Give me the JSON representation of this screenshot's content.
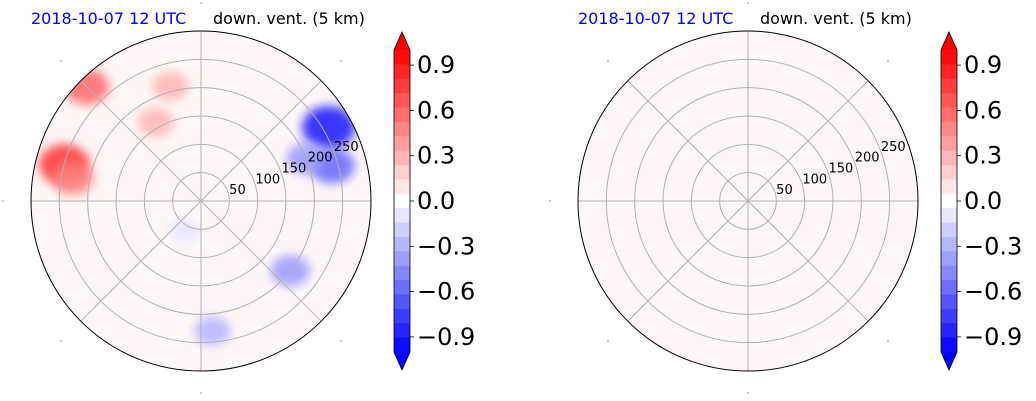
{
  "chart_data": [
    {
      "type": "polar-contourf",
      "title_left": "2018-10-07 12 UTC",
      "title_right": "down. vent. (5 km)",
      "radial_ticks": [
        50,
        100,
        150,
        200,
        250
      ],
      "radial_max": 300,
      "theta_gridlines_deg": [
        0,
        45,
        90,
        135,
        180,
        225,
        270,
        315
      ],
      "grid": true,
      "colormap": "bwr",
      "colorbar": {
        "ticks": [
          "0.9",
          "0.6",
          "0.3",
          "0.0",
          "−0.3",
          "−0.6",
          "−0.9"
        ],
        "tick_values": [
          0.9,
          0.6,
          0.3,
          0.0,
          -0.3,
          -0.6,
          -0.9
        ],
        "vmin": -1.0,
        "vmax": 1.0,
        "levels": 21,
        "extend": "both"
      },
      "base_value": 0.03,
      "features": [
        {
          "r": 285,
          "theta_deg": 135,
          "value": 0.6
        },
        {
          "r": 250,
          "theta_deg": 165,
          "value": 0.8
        },
        {
          "r": 230,
          "theta_deg": 170,
          "value": 0.5
        },
        {
          "r": 160,
          "theta_deg": 120,
          "value": 0.3
        },
        {
          "r": 210,
          "theta_deg": 105,
          "value": 0.3
        },
        {
          "r": 260,
          "theta_deg": 30,
          "value": -0.9
        },
        {
          "r": 240,
          "theta_deg": 15,
          "value": -0.6
        },
        {
          "r": 200,
          "theta_deg": 22,
          "value": -0.4
        },
        {
          "r": 200,
          "theta_deg": -38,
          "value": -0.4
        },
        {
          "r": 230,
          "theta_deg": -85,
          "value": -0.3
        },
        {
          "r": 60,
          "theta_deg": -120,
          "value": -0.1
        }
      ]
    },
    {
      "type": "polar-contourf",
      "title_left": "2018-10-07 12 UTC",
      "title_right": "down. vent. (5 km)",
      "radial_ticks": [
        50,
        100,
        150,
        200,
        250
      ],
      "radial_max": 300,
      "theta_gridlines_deg": [
        0,
        45,
        90,
        135,
        180,
        225,
        270,
        315
      ],
      "grid": true,
      "colormap": "bwr",
      "colorbar": {
        "ticks": [
          "0.9",
          "0.6",
          "0.3",
          "0.0",
          "−0.3",
          "−0.6",
          "−0.9"
        ],
        "tick_values": [
          0.9,
          0.6,
          0.3,
          0.0,
          -0.3,
          -0.6,
          -0.9
        ],
        "vmin": -1.0,
        "vmax": 1.0,
        "levels": 21,
        "extend": "both"
      },
      "base_value": 0.03,
      "features": []
    }
  ]
}
